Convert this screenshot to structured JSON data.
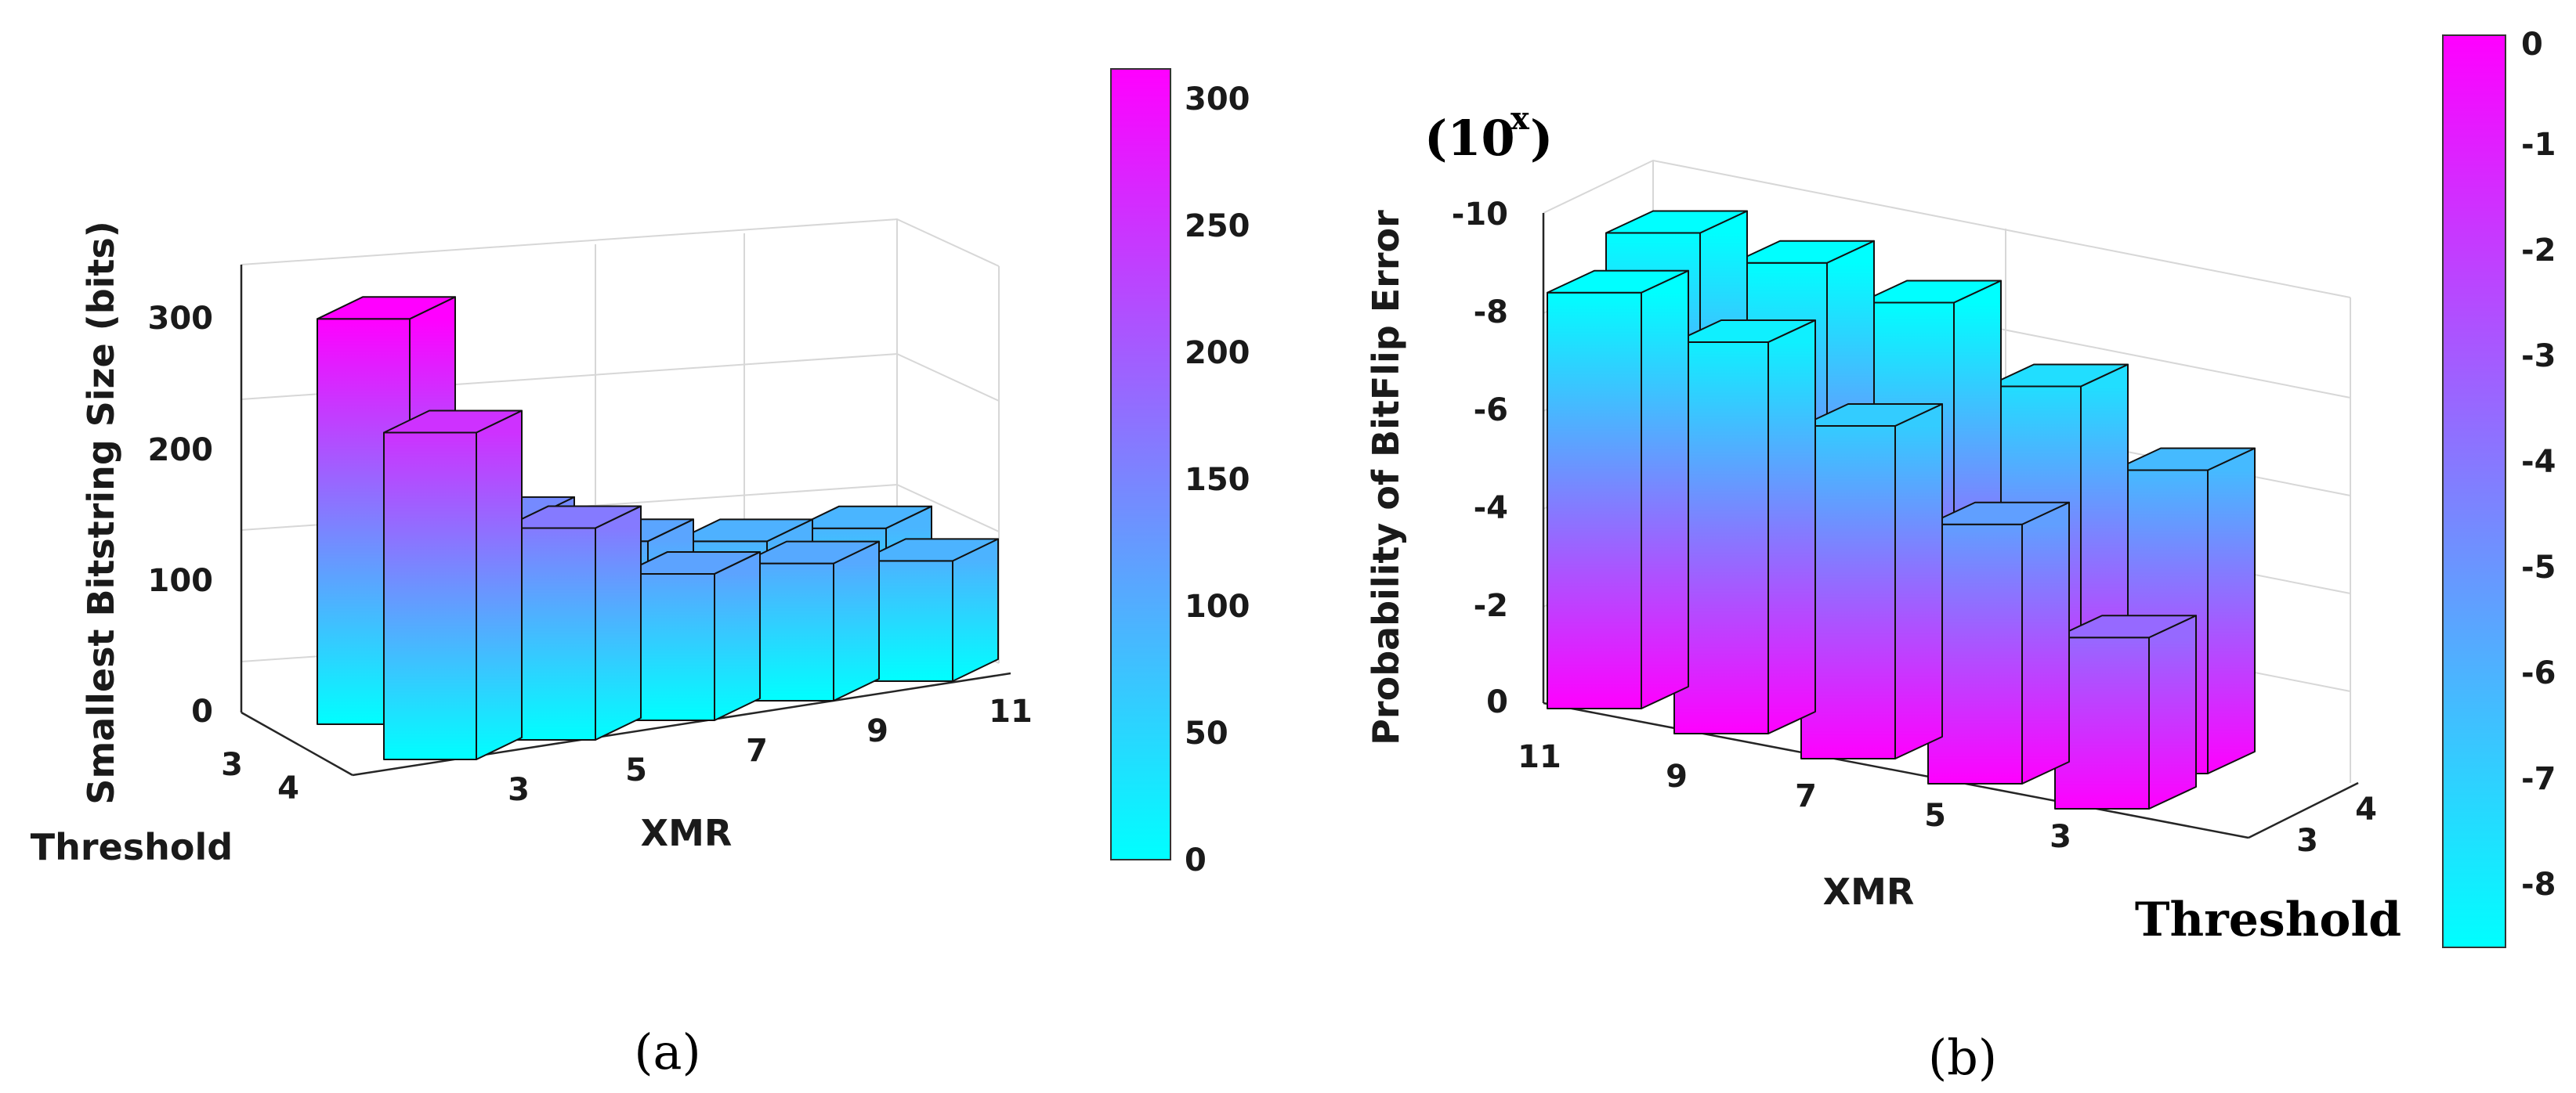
{
  "chart_data": [
    {
      "type": "bar3d",
      "panel_caption": "(a)",
      "zlabel": "Smallest Bitstring Size (bits)",
      "xlabel": "XMR",
      "ylabel": "Threshold",
      "x_ticks": [
        "3",
        "5",
        "7",
        "9",
        "11"
      ],
      "y_ticks": [
        "3",
        "4"
      ],
      "z_ticks": [
        "0",
        "100",
        "200",
        "300"
      ],
      "zlim": [
        0,
        350
      ],
      "series": [
        {
          "name": "Threshold 3",
          "values": [
            310,
            142,
            110,
            95,
            90
          ]
        },
        {
          "name": "Threshold 4",
          "values": [
            250,
            162,
            112,
            105,
            92
          ]
        }
      ],
      "colorbar": {
        "ticks": [
          "0",
          "50",
          "100",
          "150",
          "200",
          "250",
          "300"
        ],
        "range": [
          0,
          310
        ]
      },
      "colormap": [
        "#00ffff",
        "#ff00ff"
      ]
    },
    {
      "type": "bar3d",
      "panel_caption": "(b)",
      "zlabel": "Probability of BitFlip Error",
      "zlabel_unit": "(10x)",
      "zlabel_unit_base": "(10",
      "zlabel_unit_exp": "x",
      "zlabel_unit_close": ")",
      "xlabel": "XMR",
      "ylabel": "Threshold",
      "x_ticks": [
        "11",
        "9",
        "7",
        "5",
        "3"
      ],
      "y_ticks": [
        "3",
        "4"
      ],
      "z_ticks": [
        "0",
        "-2",
        "-4",
        "-6",
        "-8",
        "-10"
      ],
      "zlim": [
        0,
        -10
      ],
      "series": [
        {
          "name": "Threshold 3",
          "values": [
            -8.5,
            -8.0,
            -6.8,
            -5.3,
            -3.5
          ]
        },
        {
          "name": "Threshold 4",
          "values": [
            -9.0,
            -8.9,
            -8.6,
            -7.4,
            -6.2
          ]
        }
      ],
      "colorbar": {
        "ticks": [
          "0",
          "-1",
          "-2",
          "-3",
          "-4",
          "-5",
          "-6",
          "-7",
          "-8"
        ],
        "range": [
          0,
          -8.5
        ]
      },
      "colormap": [
        "#ff00ff",
        "#00ffff"
      ]
    }
  ]
}
